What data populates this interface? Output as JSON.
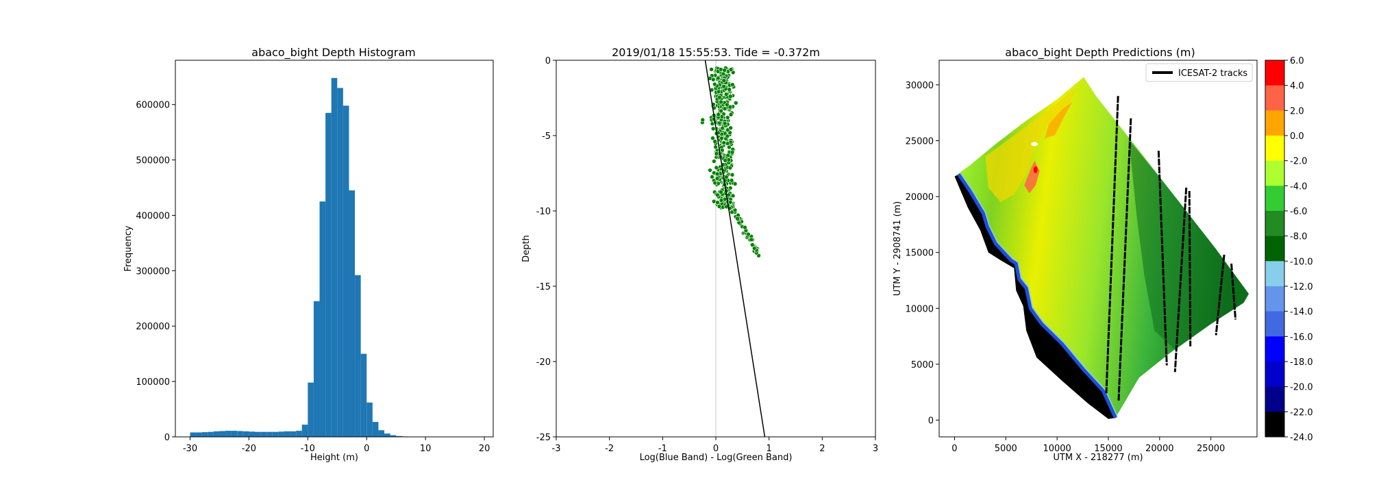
{
  "chart_data": [
    {
      "type": "bar",
      "title": "abaco_bight  Depth Histogram",
      "xlabel": "Height (m)",
      "ylabel": "Frequency",
      "xlim": [
        -32.5,
        21.5
      ],
      "ylim": [
        0,
        680000
      ],
      "xticks": [
        -30,
        -20,
        -10,
        0,
        10,
        20
      ],
      "yticks": [
        0,
        100000,
        200000,
        300000,
        400000,
        500000,
        600000
      ],
      "color": "#1f77b4",
      "bin_edges": [
        -30,
        -29,
        -28,
        -27,
        -26,
        -25,
        -24,
        -23,
        -22,
        -21,
        -20,
        -19,
        -18,
        -17,
        -16,
        -15,
        -14,
        -13,
        -12,
        -11,
        -10,
        -9,
        -8,
        -7,
        -6,
        -5,
        -4,
        -3,
        -2,
        -1,
        0,
        1,
        2,
        3,
        4,
        5,
        6,
        7
      ],
      "values": [
        8000,
        8000,
        8500,
        9000,
        10000,
        10500,
        11000,
        11000,
        10500,
        10000,
        9500,
        9000,
        9000,
        9000,
        9000,
        9500,
        10000,
        10000,
        11000,
        22000,
        98000,
        245000,
        425000,
        585000,
        648000,
        630000,
        598000,
        445000,
        292000,
        150000,
        62000,
        27000,
        12000,
        6000,
        3000,
        1500,
        800
      ]
    },
    {
      "type": "scatter",
      "title": "2019/01/18 15:55:53. Tide = -0.372m",
      "xlabel": "Log(Blue Band) - Log(Green Band)",
      "ylabel": "Depth",
      "xlim": [
        -3,
        3
      ],
      "ylim": [
        -25,
        0
      ],
      "xticks": [
        -3,
        -2,
        -1,
        0,
        1,
        2,
        3
      ],
      "yticks": [
        0,
        -5,
        -10,
        -15,
        -20,
        -25
      ],
      "color": "#008000",
      "fit_line": {
        "x": [
          -0.2,
          0.92
        ],
        "y": [
          0,
          -25
        ]
      },
      "vline_x": 0,
      "point_count": 500,
      "cluster": {
        "x_center": 0.15,
        "y_range": [
          -0.5,
          -9.8
        ],
        "spread": 0.13
      },
      "tail": {
        "x_range": [
          0.25,
          0.8
        ],
        "y_range": [
          -9.5,
          -12.8
        ]
      }
    },
    {
      "type": "heatmap",
      "title": "abaco_bight  Depth Predictions (m)",
      "xlabel": "UTM X - 218277 (m)",
      "ylabel": "UTM Y - 2908741 (m)",
      "xlim": [
        -1500,
        29500
      ],
      "ylim": [
        -1500,
        32200
      ],
      "xticks": [
        0,
        5000,
        10000,
        15000,
        20000,
        25000
      ],
      "yticks": [
        0,
        5000,
        10000,
        15000,
        20000,
        25000,
        30000
      ],
      "legend": {
        "label": "ICESAT-2 tracks",
        "placement": "upper-right"
      },
      "colorbar": {
        "tick_labels": [
          "6.0",
          "4.0",
          "2.0",
          "0.0",
          "-2.0",
          "-4.0",
          "-6.0",
          "-8.0",
          "-10.0",
          "-12.0",
          "-14.0",
          "-16.0",
          "-18.0",
          "-20.0",
          "-22.0",
          "-24.0"
        ],
        "colors": [
          "#ff0000",
          "#ff6347",
          "#ffa500",
          "#ffff00",
          "#adff2f",
          "#32cd32",
          "#228b22",
          "#006400",
          "#87ceeb",
          "#6495ed",
          "#4169e1",
          "#0000ff",
          "#0000cd",
          "#00008b",
          "#000000"
        ]
      },
      "tracks": [
        [
          [
            15950,
            29000
          ],
          [
            14800,
            2400
          ]
        ],
        [
          [
            17200,
            27000
          ],
          [
            16000,
            1700
          ]
        ],
        [
          [
            19900,
            24100
          ],
          [
            20700,
            4900
          ]
        ],
        [
          [
            22600,
            20800
          ],
          [
            21500,
            4300
          ]
        ],
        [
          [
            22900,
            20500
          ],
          [
            23000,
            6600
          ]
        ],
        [
          [
            26300,
            14800
          ],
          [
            25500,
            7600
          ]
        ],
        [
          [
            27000,
            14000
          ],
          [
            27400,
            9000
          ]
        ]
      ]
    }
  ]
}
